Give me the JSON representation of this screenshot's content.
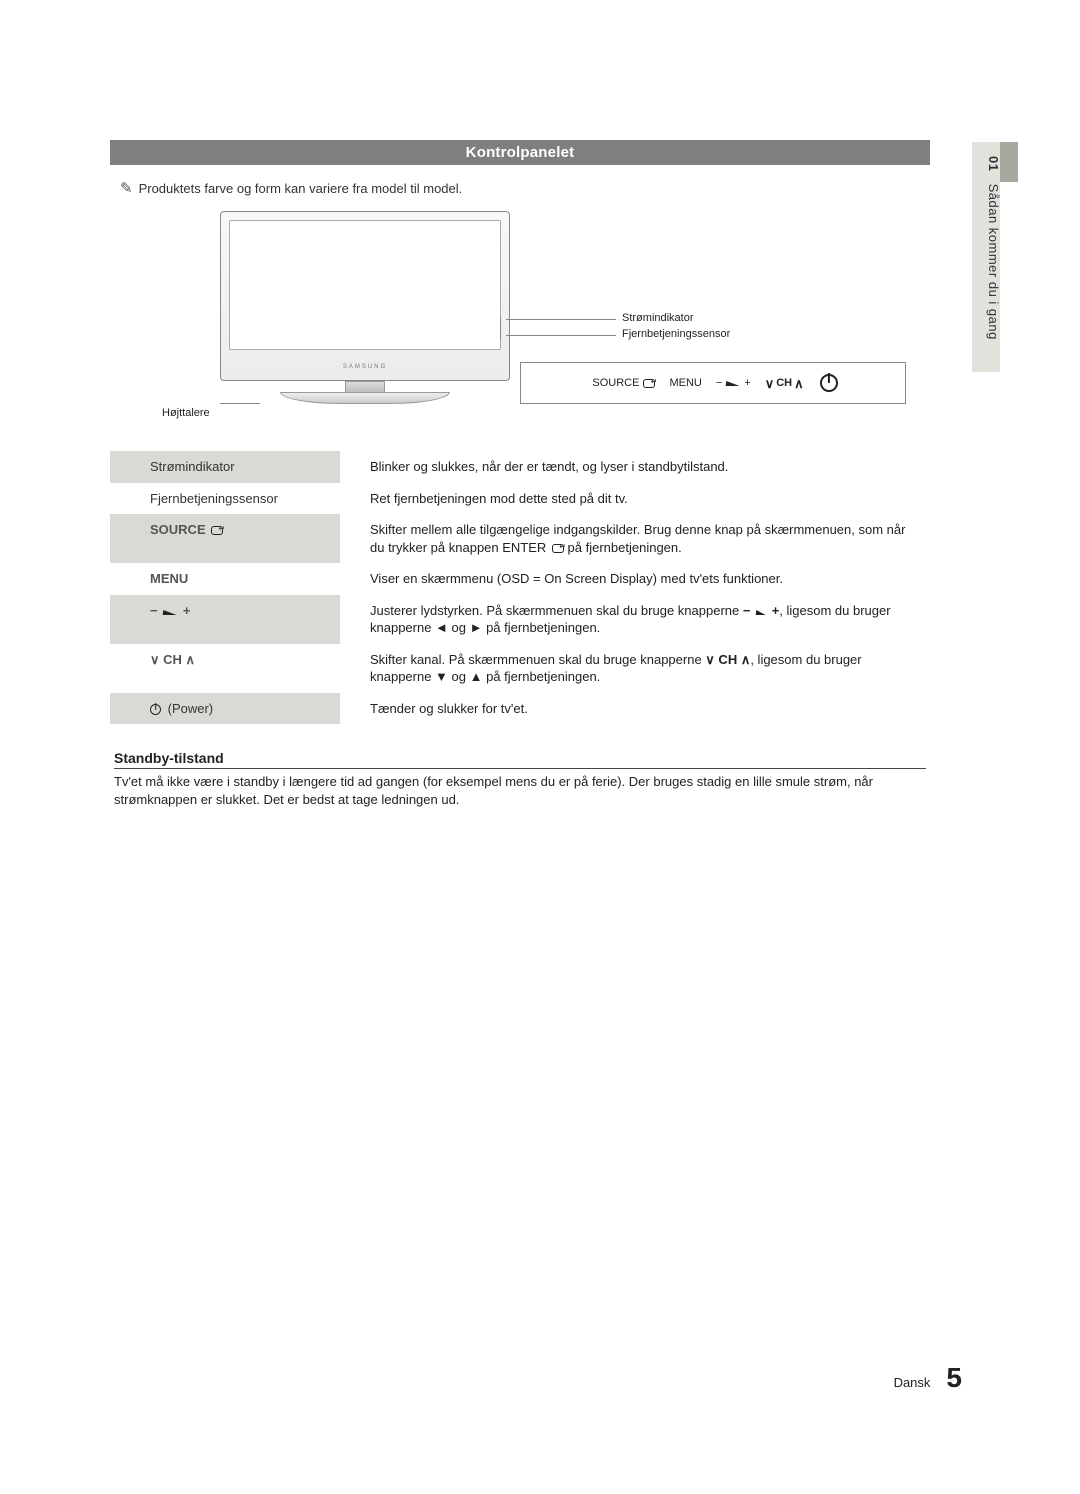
{
  "section_title": "Kontrolpanelet",
  "note_text": "Produktets farve og form kan variere fra model til model.",
  "diagram": {
    "led_label": "Strømindikator",
    "sensor_label": "Fjernbetjeningssensor",
    "speaker_label": "Højttalere",
    "brand": "SAMSUNG",
    "buttons": {
      "source": "SOURCE",
      "menu": "MENU",
      "ch": "CH"
    }
  },
  "rows": [
    {
      "label_text": "Strømindikator",
      "label_html": "Strømindikator",
      "desc": "Blinker og slukkes, når der er tændt, og lyser i standbytilstand."
    },
    {
      "label_text": "Fjernbetjeningssensor",
      "label_html": "Fjernbetjeningssensor",
      "desc": "Ret fjernbetjeningen mod dette sted på dit tv."
    },
    {
      "label_text": "SOURCE",
      "key": true,
      "desc": "Skifter mellem alle tilgængelige indgangskilder. Brug denne knap på skærmmenuen, som når du trykker på knappen ENTER på fjernbetjeningen.",
      "desc_has_enter_glyph": true
    },
    {
      "label_text": "MENU",
      "key": true,
      "desc": "Viser en skærmmenu (OSD = On Screen Display) med tv'ets funktioner."
    },
    {
      "label_text": "− ◢ +",
      "key": true,
      "is_vol": true,
      "desc": "Justerer lydstyrken. På skærmmenuen skal du bruge knapperne − ◢ +, ligesom du bruger knapperne ◄ og ► på fjernbetjeningen."
    },
    {
      "label_text": "∨ CH ∧",
      "key": true,
      "is_ch": true,
      "desc": "Skifter kanal. På skærmmenuen skal du bruge knapperne ∨ CH ∧, ligesom du bruger knapperne ▼ og ▲ på fjernbetjeningen."
    },
    {
      "label_text": "(Power)",
      "is_power": true,
      "desc": "Tænder og slukker for tv'et."
    }
  ],
  "standby": {
    "title": "Standby-tilstand",
    "body": "Tv'et må ikke være i standby i længere tid ad gangen (for eksempel mens du er på ferie). Der bruges stadig en lille smule strøm, når strømknappen er slukket. Det er bedst at tage ledningen ud."
  },
  "side": {
    "chapter_num": "01",
    "chapter_title": "Sådan kommer du i gang"
  },
  "footer": {
    "lang": "Dansk",
    "page": "5"
  },
  "colors": {
    "bar_bg": "#7f7f7f",
    "shade": "#d9d9d5",
    "side_bg": "#e2e2dc",
    "side_dark": "#a7a79d"
  }
}
